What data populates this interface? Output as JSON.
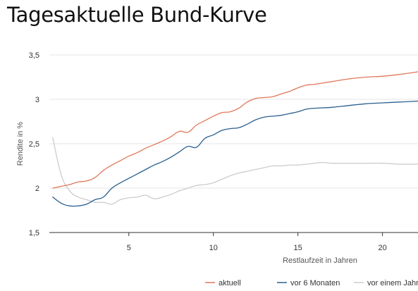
{
  "chart_data": {
    "type": "line",
    "title": "Tagesaktuelle Bund-Kurve",
    "xlabel": "Restlaufzeit in Jahren",
    "ylabel": "Rendite in %",
    "xlim": [
      0.3,
      22.1
    ],
    "ylim": [
      1.5,
      3.5
    ],
    "x_ticks": [
      5,
      10,
      15,
      20
    ],
    "x_tick_labels": [
      "5",
      "10",
      "15",
      "20"
    ],
    "y_ticks": [
      1.5,
      2,
      2.5,
      3,
      3.5
    ],
    "y_tick_labels": [
      "1,5",
      "2",
      "2,5",
      "3",
      "3,5"
    ],
    "grid": "horizontal",
    "legend_position": "bottom-right",
    "series": [
      {
        "name": "aktuell",
        "color": "#e0775a",
        "x": [
          0.5,
          1,
          1.5,
          2,
          2.5,
          3,
          3.5,
          4,
          4.5,
          5,
          5.5,
          6,
          6.5,
          7,
          7.5,
          8,
          8.5,
          9,
          9.5,
          10,
          10.5,
          11,
          11.5,
          12,
          12.5,
          13,
          13.5,
          14,
          14.5,
          15,
          15.5,
          16,
          17,
          18,
          19,
          20,
          21,
          22.1
        ],
        "y": [
          2.0,
          2.02,
          2.04,
          2.07,
          2.08,
          2.12,
          2.2,
          2.26,
          2.31,
          2.36,
          2.4,
          2.45,
          2.49,
          2.53,
          2.58,
          2.64,
          2.63,
          2.71,
          2.76,
          2.81,
          2.85,
          2.86,
          2.9,
          2.97,
          3.01,
          3.02,
          3.03,
          3.06,
          3.09,
          3.13,
          3.16,
          3.17,
          3.2,
          3.23,
          3.25,
          3.26,
          3.28,
          3.31
        ]
      },
      {
        "name": "vor 6 Monaten",
        "color": "#2a5f8f",
        "x": [
          0.5,
          1,
          1.5,
          2,
          2.5,
          3,
          3.5,
          4,
          4.5,
          5,
          5.5,
          6,
          6.5,
          7,
          7.5,
          8,
          8.5,
          9,
          9.5,
          10,
          10.5,
          11,
          11.5,
          12,
          12.5,
          13,
          13.5,
          14,
          14.5,
          15,
          15.5,
          16,
          17,
          18,
          19,
          20,
          21,
          22.1
        ],
        "y": [
          1.9,
          1.83,
          1.8,
          1.8,
          1.82,
          1.87,
          1.9,
          2.0,
          2.06,
          2.11,
          2.16,
          2.21,
          2.26,
          2.3,
          2.35,
          2.41,
          2.47,
          2.46,
          2.56,
          2.6,
          2.65,
          2.67,
          2.68,
          2.72,
          2.77,
          2.8,
          2.81,
          2.82,
          2.84,
          2.86,
          2.89,
          2.9,
          2.91,
          2.93,
          2.95,
          2.96,
          2.97,
          2.98
        ]
      },
      {
        "name": "vor einem Jahr",
        "color": "#cccccc",
        "x": [
          0.5,
          1,
          1.5,
          2,
          2.5,
          3,
          3.5,
          4,
          4.5,
          5,
          5.5,
          6,
          6.5,
          7,
          7.5,
          8,
          8.5,
          9,
          9.5,
          10,
          10.5,
          11,
          11.5,
          12,
          12.5,
          13,
          13.5,
          14,
          14.5,
          15,
          15.5,
          16,
          16.5,
          17,
          18,
          19,
          20,
          21,
          22.1
        ],
        "y": [
          2.57,
          2.15,
          1.97,
          1.9,
          1.87,
          1.84,
          1.84,
          1.82,
          1.87,
          1.89,
          1.9,
          1.92,
          1.88,
          1.9,
          1.93,
          1.97,
          2.0,
          2.03,
          2.04,
          2.06,
          2.1,
          2.14,
          2.17,
          2.19,
          2.21,
          2.23,
          2.25,
          2.25,
          2.26,
          2.26,
          2.27,
          2.28,
          2.29,
          2.28,
          2.28,
          2.28,
          2.28,
          2.27,
          2.27
        ]
      }
    ]
  }
}
